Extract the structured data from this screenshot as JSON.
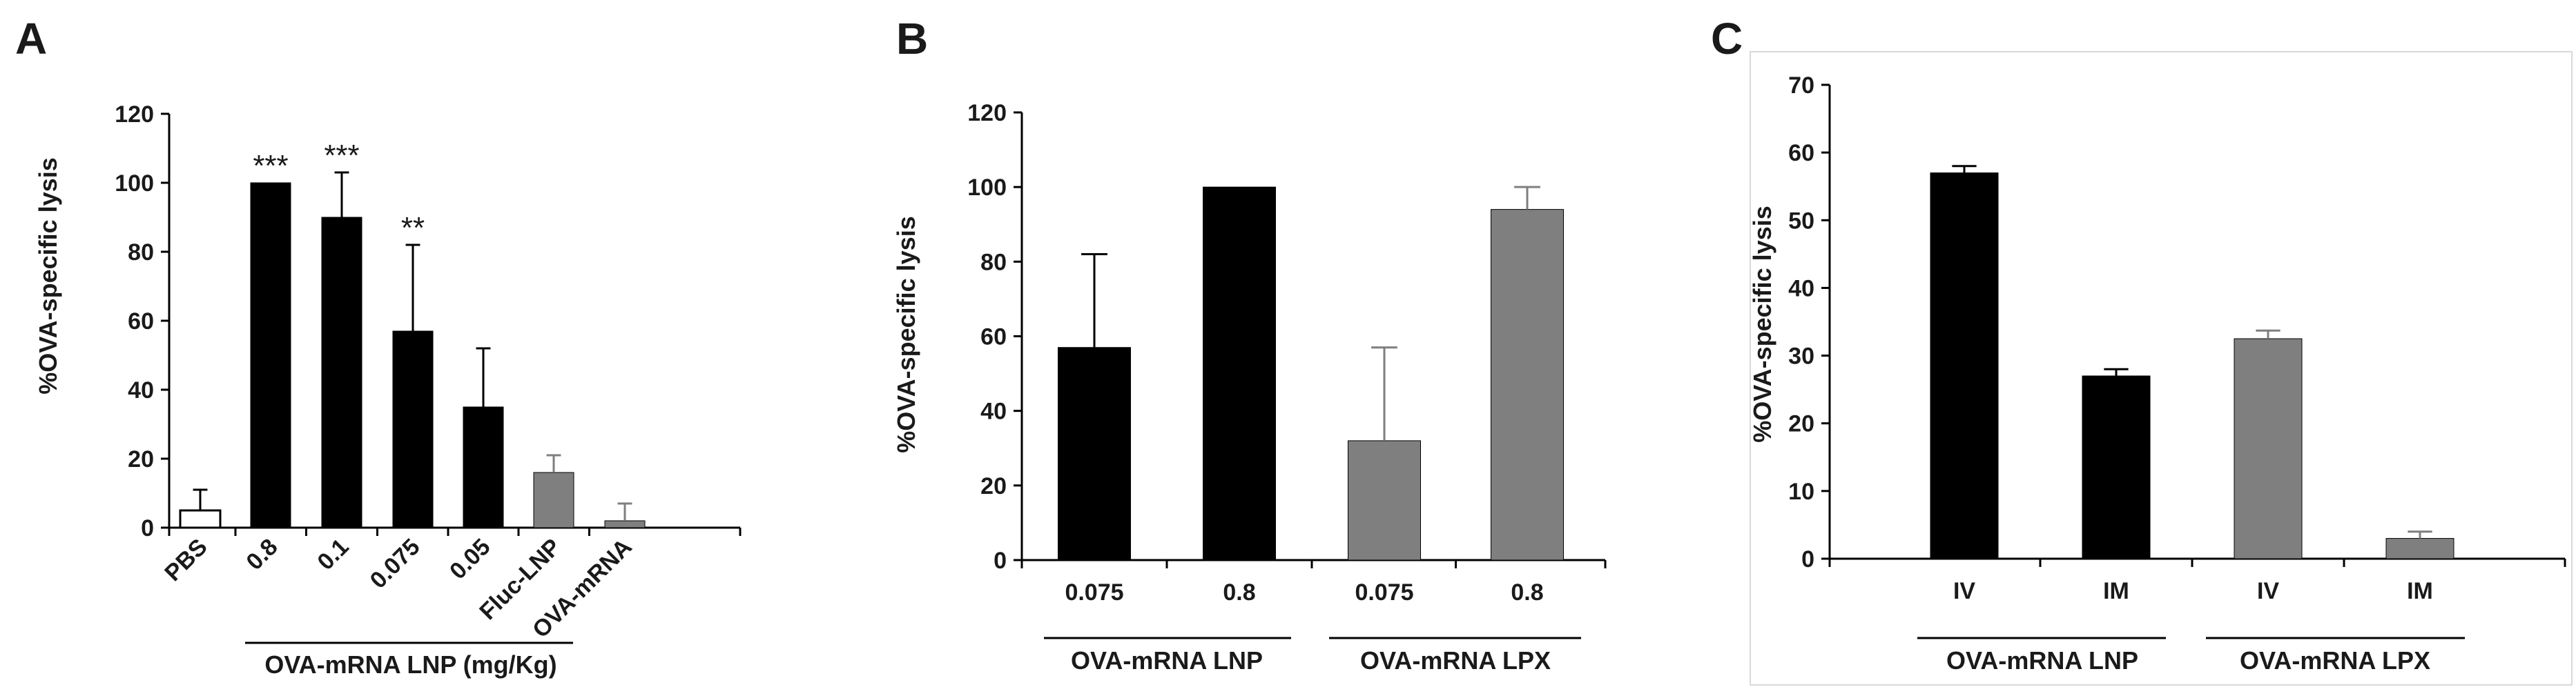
{
  "chart_data": [
    {
      "panel": "A",
      "type": "bar",
      "ylabel": "%OVA-specific  lysis",
      "ylim": [
        0,
        120
      ],
      "yticks": [
        0,
        20,
        40,
        60,
        80,
        100,
        120
      ],
      "categories": [
        "PBS",
        "0.8",
        "0.1",
        "0.075",
        "0.05",
        "Fluc-LNP",
        "OVA-mRNA"
      ],
      "values": [
        5,
        100,
        90,
        57,
        35,
        16,
        2
      ],
      "errors": [
        6,
        0,
        13,
        25,
        17,
        5,
        5
      ],
      "fills": [
        "white",
        "black",
        "black",
        "black",
        "black",
        "gray",
        "gray"
      ],
      "significance": [
        "",
        "***",
        "***",
        "**",
        "",
        "",
        ""
      ],
      "group_label": "OVA-mRNA LNP (mg/Kg)",
      "colors": {
        "black": "#000000",
        "gray": "#7f7f7f",
        "white": "#ffffff"
      }
    },
    {
      "panel": "B",
      "type": "bar",
      "ylabel": "%OVA-specific  lysis",
      "ylim": [
        0,
        120
      ],
      "yticks": [
        0,
        20,
        40,
        60,
        80,
        100,
        120
      ],
      "categories": [
        "0.075",
        "0.8",
        "0.075",
        "0.8"
      ],
      "values": [
        57,
        100,
        32,
        94
      ],
      "errors": [
        25,
        0,
        25,
        6
      ],
      "fills": [
        "black",
        "black",
        "gray",
        "gray"
      ],
      "groups": [
        "OVA-mRNA LNP",
        "OVA-mRNA LPX"
      ],
      "colors": {
        "black": "#000000",
        "gray": "#7f7f7f"
      }
    },
    {
      "panel": "C",
      "type": "bar",
      "ylabel": "%OVA-specific  lysis",
      "ylim": [
        0,
        70
      ],
      "yticks": [
        0,
        10,
        20,
        30,
        40,
        50,
        60,
        70
      ],
      "categories": [
        "IV",
        "IM",
        "IV",
        "IM"
      ],
      "values": [
        57,
        27,
        32.5,
        3
      ],
      "errors": [
        1,
        1,
        1.2,
        1
      ],
      "fills": [
        "black",
        "black",
        "gray",
        "gray"
      ],
      "groups": [
        "OVA-mRNA LNP",
        "OVA-mRNA LPX"
      ],
      "colors": {
        "black": "#000000",
        "gray": "#7f7f7f"
      }
    }
  ]
}
